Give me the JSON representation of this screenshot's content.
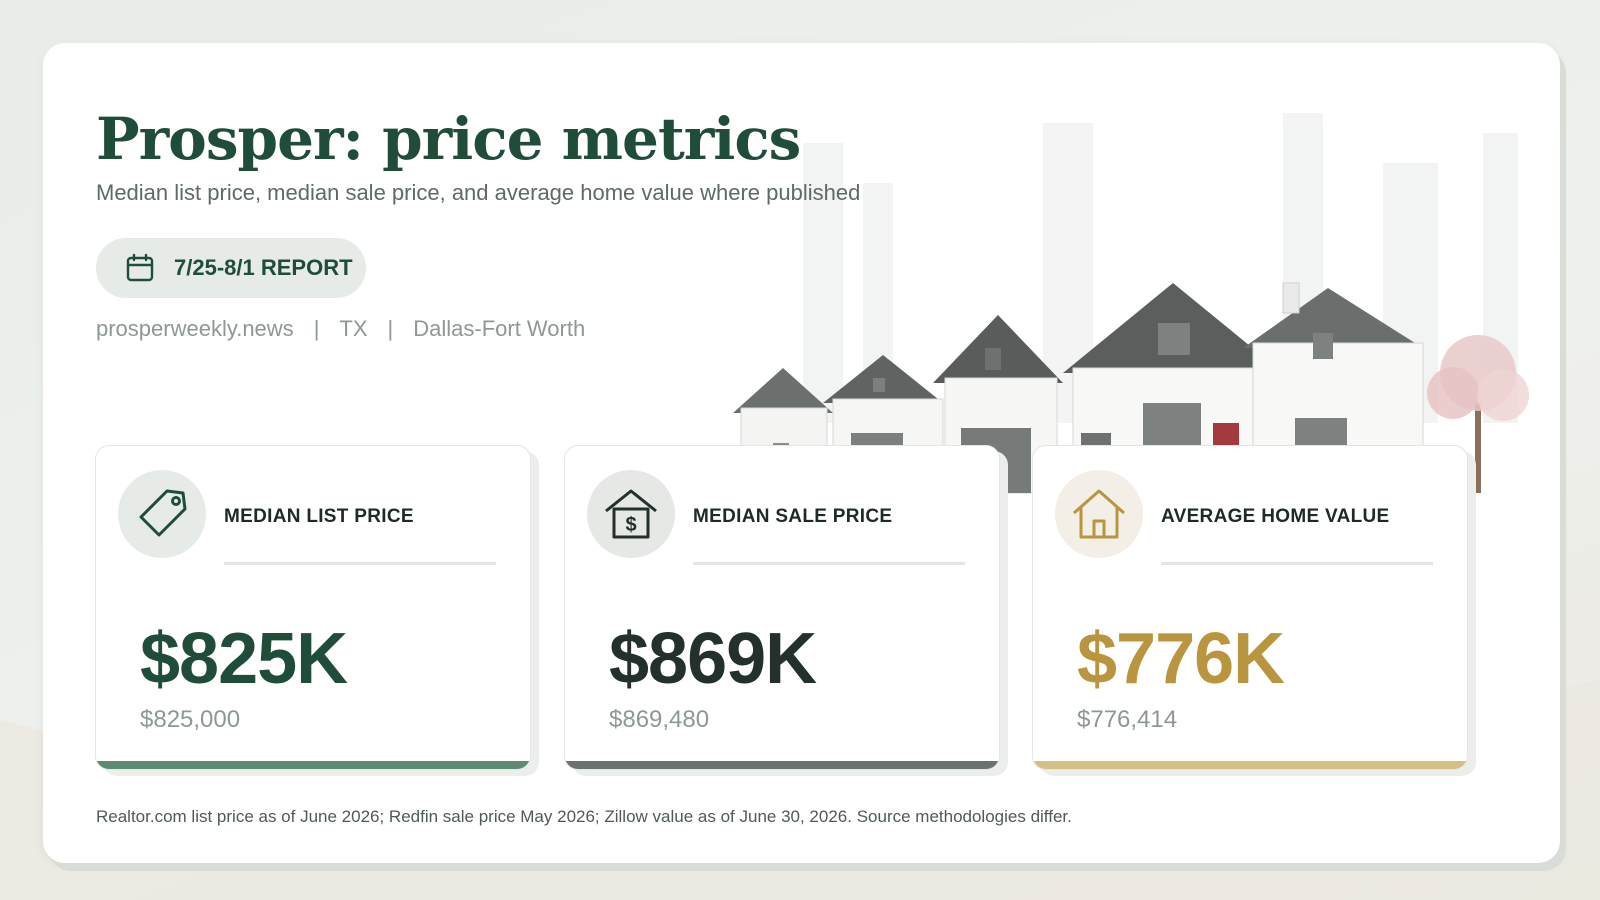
{
  "header": {
    "title": "Prosper: price metrics",
    "subtitle": "Median list price, median sale price, and average home value where published"
  },
  "report": {
    "label": "7/25-8/1 REPORT",
    "icon": "calendar-icon"
  },
  "source_line": {
    "site": "prosperweekly.news",
    "separator": "|",
    "state": "TX",
    "region": "Dallas-Fort Worth"
  },
  "metrics": [
    {
      "label": "MEDIAN LIST PRICE",
      "value": "$825K",
      "exact": "$825,000",
      "icon": "price-tag-icon",
      "accent": "#1f4d3a",
      "bar_color": "#5e8a76",
      "circle_color": "#e6ebe7"
    },
    {
      "label": "MEDIAN SALE PRICE",
      "value": "$869K",
      "exact": "$869,480",
      "icon": "house-dollar-icon",
      "accent": "#24302b",
      "bar_color": "#6b716e",
      "circle_color": "#e6e8e6"
    },
    {
      "label": "AVERAGE HOME VALUE",
      "value": "$776K",
      "exact": "$776,414",
      "icon": "house-icon",
      "accent": "#b8953e",
      "bar_color": "#d6bf82",
      "circle_color": "#f3efe7"
    }
  ],
  "footnote": "Realtor.com list price as of June 2026; Redfin sale price May 2026; Zillow value as of June 30, 2026. Source methodologies differ.",
  "colors": {
    "brand_green": "#1f4d3a",
    "gold": "#b8953e"
  }
}
